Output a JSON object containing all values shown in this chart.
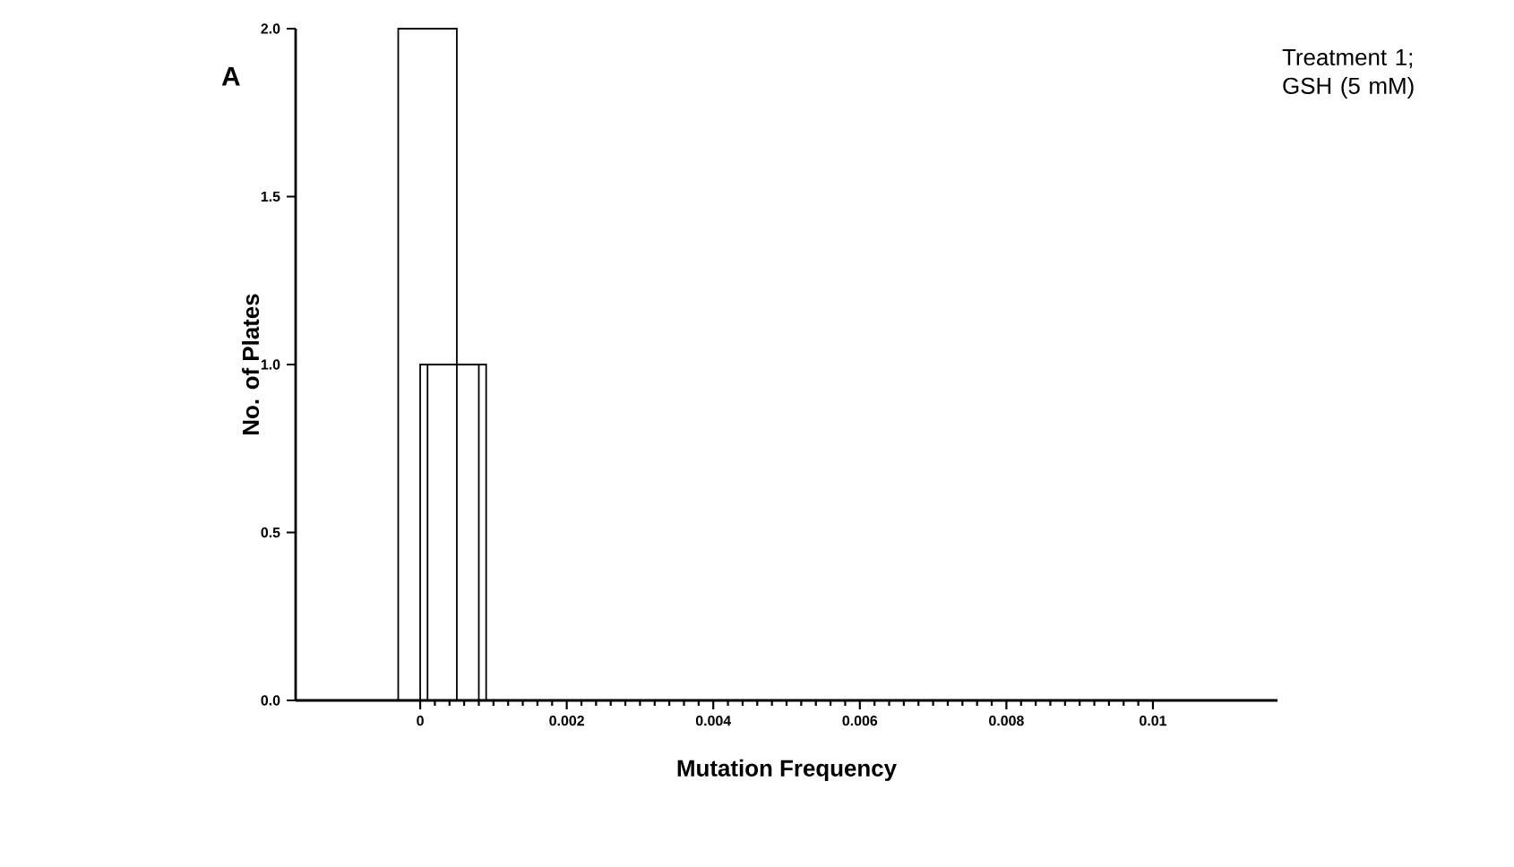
{
  "chart_data": {
    "type": "bar",
    "xlabel": "Mutation Frequency",
    "ylabel": "No. of Plates",
    "annotations": [
      "A",
      "Treatment 1; GSH (5 mM)"
    ],
    "series": [
      {
        "color": "#000000",
        "x": [
          0.0001
        ],
        "values": [
          2
        ]
      },
      {
        "color": "#000000",
        "x": [
          0.0004
        ],
        "values": [
          1
        ]
      },
      {
        "color": "#000000",
        "x": [
          0.0005
        ],
        "values": [
          1
        ]
      }
    ],
    "xlim": [
      -0.0017,
      0.0117
    ],
    "ylim": [
      0,
      2
    ],
    "xticks": [
      0,
      0.002,
      0.004,
      0.006,
      0.008,
      0.01
    ],
    "yticks": [
      {
        "value": 0,
        "label": "0.0"
      },
      {
        "value": 0.5,
        "label": "0.5"
      },
      {
        "value": 1,
        "label": "1.0"
      },
      {
        "value": 1.5,
        "label": "1.5"
      },
      {
        "value": 2,
        "label": "2.0"
      }
    ],
    "grid": false
  }
}
